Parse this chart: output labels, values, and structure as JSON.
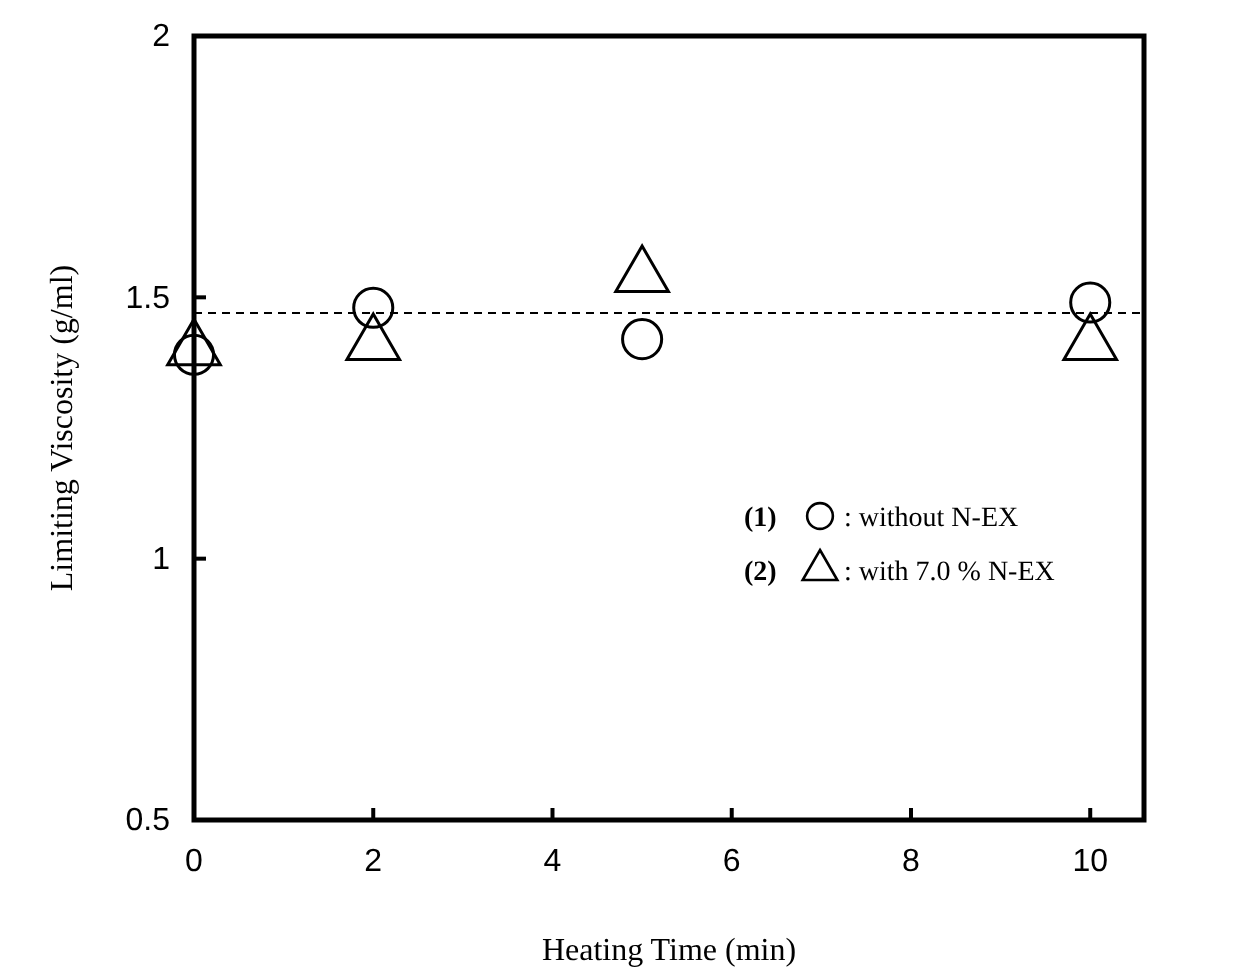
{
  "chart_data": {
    "type": "scatter",
    "xlabel": "Heating Time (min)",
    "ylabel": "Limiting Viscosity (g/ml)",
    "x": [
      0,
      2,
      5,
      10
    ],
    "series": [
      {
        "name": ": without N-EX",
        "color": "#000000",
        "marker": "circle",
        "values": [
          1.39,
          1.48,
          1.42,
          1.49
        ]
      },
      {
        "name": ": with 7.0 % N-EX",
        "color": "#000000",
        "marker": "triangle",
        "values": [
          1.4,
          1.41,
          1.54,
          1.41
        ]
      }
    ],
    "xlim": [
      0,
      10.6
    ],
    "xticks": [
      0,
      2,
      4,
      6,
      8,
      10
    ],
    "ylim": [
      0.5,
      2
    ],
    "yticks": [
      0.5,
      1,
      1.5,
      2
    ],
    "ref_lines": [
      {
        "axis": "y",
        "value": 1.47,
        "color": "#000000",
        "line_style": "dashed"
      }
    ],
    "annotations": [
      "(1)",
      "(2)"
    ],
    "legend": "right",
    "grid": false
  }
}
